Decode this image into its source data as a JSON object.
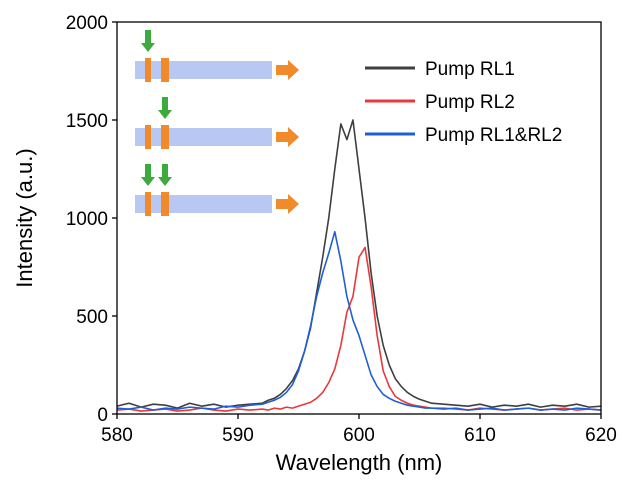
{
  "chart_data": {
    "type": "line",
    "x_label": "Wavelength (nm)",
    "y_label": "Intensity (a.u.)",
    "x": [
      580,
      581,
      582,
      583,
      584,
      585,
      586,
      587,
      588,
      589,
      590,
      591,
      592,
      592.5,
      593,
      593.5,
      594,
      594.5,
      595,
      595.5,
      596,
      596.5,
      597,
      597.5,
      598,
      598.5,
      599,
      599.5,
      600,
      600.5,
      601,
      601.5,
      602,
      602.5,
      603,
      603.5,
      604,
      604.5,
      605,
      605.5,
      606,
      607,
      608,
      609,
      610,
      611,
      612,
      613,
      614,
      615,
      616,
      617,
      618,
      619,
      620
    ],
    "series": [
      {
        "name": "Pump RL1",
        "color": "#3f3f3f",
        "values": [
          40,
          55,
          35,
          50,
          45,
          30,
          55,
          40,
          50,
          35,
          45,
          50,
          55,
          70,
          80,
          100,
          130,
          170,
          230,
          320,
          440,
          620,
          800,
          1000,
          1250,
          1480,
          1400,
          1500,
          1250,
          1000,
          720,
          500,
          350,
          250,
          180,
          140,
          110,
          90,
          75,
          65,
          55,
          50,
          45,
          40,
          50,
          35,
          45,
          40,
          50,
          35,
          45,
          40,
          50,
          35,
          40
        ]
      },
      {
        "name": "Pump RL2",
        "color": "#e8393a",
        "values": [
          20,
          25,
          15,
          20,
          25,
          15,
          20,
          30,
          20,
          15,
          25,
          20,
          25,
          20,
          30,
          25,
          35,
          30,
          40,
          50,
          60,
          80,
          110,
          160,
          230,
          350,
          520,
          600,
          800,
          850,
          650,
          400,
          220,
          140,
          90,
          70,
          55,
          45,
          40,
          35,
          30,
          30,
          25,
          20,
          30,
          25,
          20,
          25,
          30,
          20,
          25,
          30,
          20,
          25,
          20
        ]
      },
      {
        "name": "Pump RL1&RL2",
        "color": "#1f5fd6",
        "values": [
          30,
          25,
          35,
          20,
          30,
          25,
          35,
          30,
          25,
          40,
          35,
          45,
          50,
          60,
          70,
          85,
          110,
          150,
          220,
          320,
          450,
          600,
          720,
          820,
          930,
          780,
          600,
          480,
          400,
          300,
          200,
          140,
          100,
          80,
          65,
          55,
          45,
          40,
          35,
          30,
          30,
          25,
          30,
          20,
          25,
          30,
          20,
          25,
          30,
          20,
          25,
          20,
          30,
          25,
          20
        ]
      }
    ],
    "xlim": [
      580,
      620
    ],
    "xticks": [
      580,
      590,
      600,
      610,
      620
    ],
    "ylim": [
      0,
      2000
    ],
    "yticks": [
      0,
      500,
      1000,
      1500,
      2000
    ],
    "legend": "upper right"
  }
}
